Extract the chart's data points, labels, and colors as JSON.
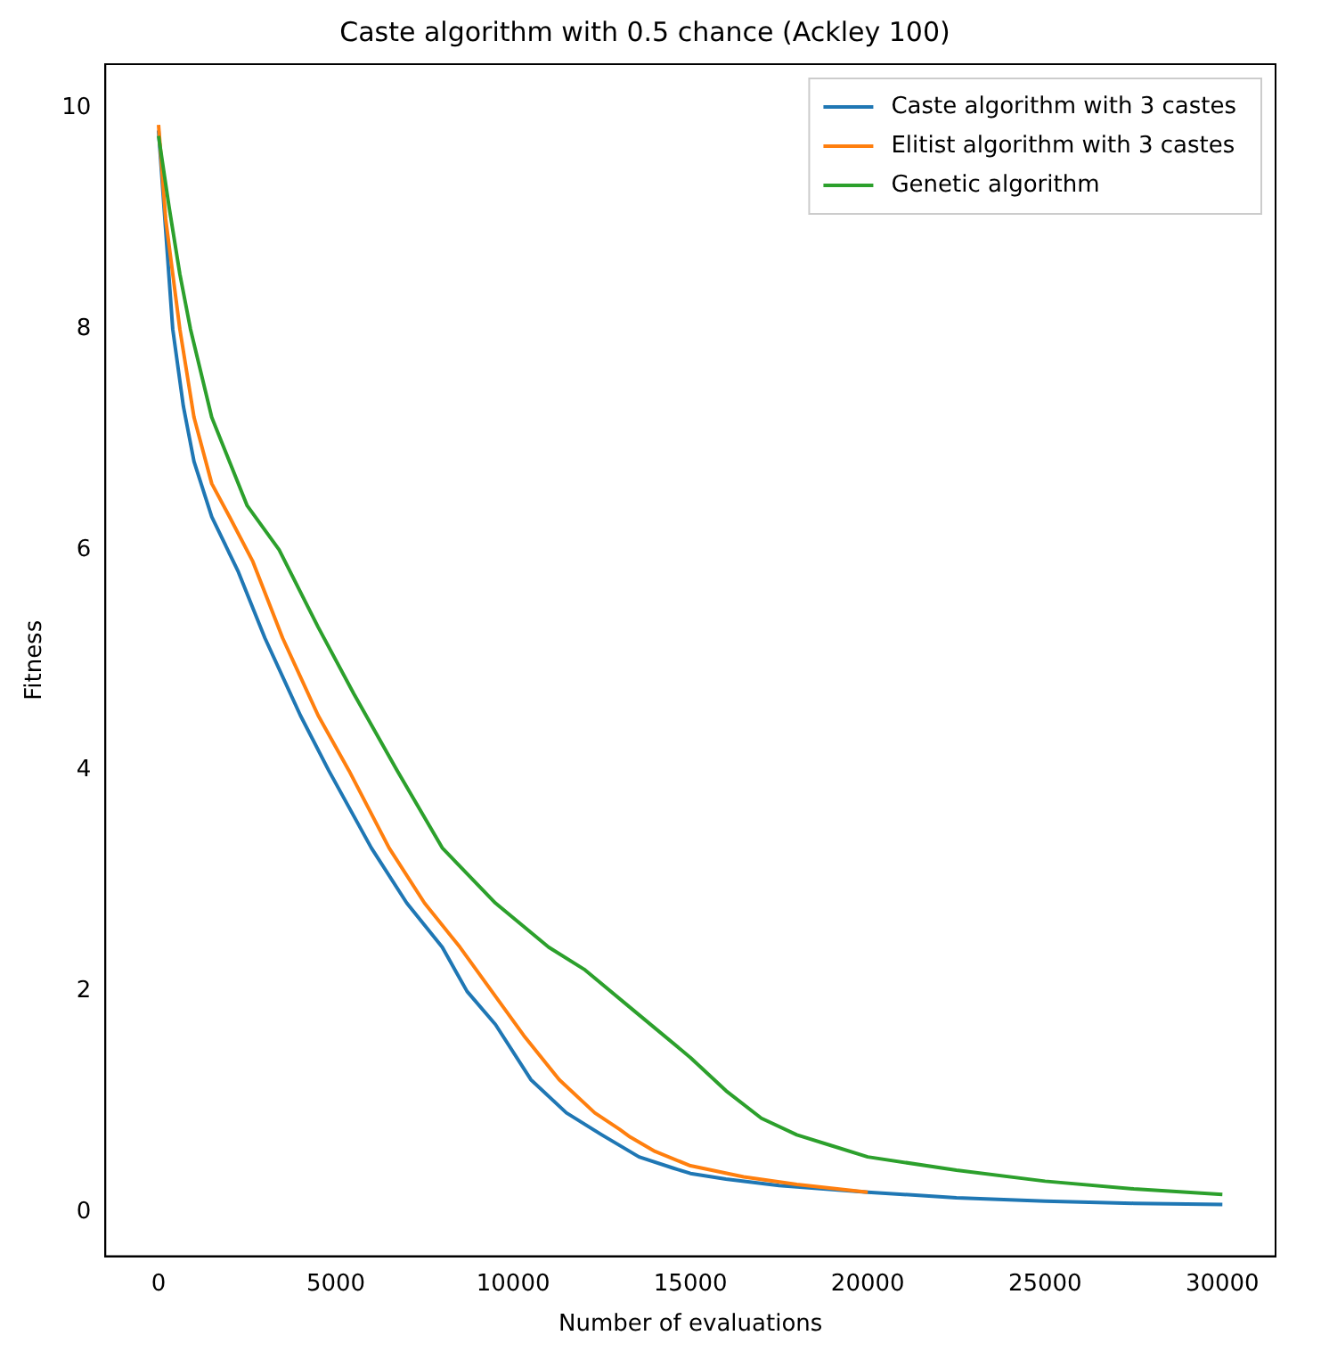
{
  "chart_data": {
    "type": "line",
    "title": "Caste algorithm with 0.5 chance (Ackley 100)",
    "xlabel": "Number of evaluations",
    "ylabel": "Fitness",
    "xlim": [
      -1500,
      31500
    ],
    "xticks": [
      0,
      5000,
      10000,
      15000,
      20000,
      25000,
      30000
    ],
    "ylim": [
      -0.4,
      10.4
    ],
    "yticks": [
      0,
      2,
      4,
      6,
      8,
      10
    ],
    "grid": false,
    "legend": "top right",
    "marker": "none",
    "line_style": "solid",
    "series": [
      {
        "name": "Caste algorithm with 3 castes",
        "color": "#1f77b4",
        "x": [
          0,
          200,
          400,
          700,
          1000,
          1500,
          2250,
          3000,
          4000,
          4800,
          6000,
          7000,
          8000,
          8700,
          9500,
          10500,
          11500,
          12500,
          13550,
          14500,
          15000,
          16000,
          17500,
          20000,
          22500,
          25000,
          27500,
          30000
        ],
        "values": [
          9.8,
          8.9,
          8.0,
          7.3,
          6.8,
          6.3,
          5.8,
          5.2,
          4.5,
          4.0,
          3.3,
          2.8,
          2.4,
          2.0,
          1.7,
          1.2,
          0.9,
          0.7,
          0.5,
          0.4,
          0.35,
          0.3,
          0.24,
          0.18,
          0.13,
          0.1,
          0.08,
          0.07
        ]
      },
      {
        "name": "Elitist algorithm with 3 castes",
        "color": "#ff7f0e",
        "x": [
          0,
          200,
          400,
          600,
          1000,
          1500,
          2000,
          2650,
          3500,
          4500,
          5370,
          6500,
          7500,
          8500,
          9400,
          10300,
          11300,
          12300,
          13000,
          13300,
          14000,
          15000,
          16500,
          18000,
          20000
        ],
        "values": [
          9.85,
          9.0,
          8.5,
          8.0,
          7.2,
          6.6,
          6.3,
          5.9,
          5.2,
          4.5,
          4.0,
          3.3,
          2.8,
          2.4,
          2.0,
          1.6,
          1.2,
          0.9,
          0.75,
          0.68,
          0.55,
          0.42,
          0.32,
          0.25,
          0.18
        ]
      },
      {
        "name": "Genetic algorithm",
        "color": "#2ca02c",
        "x": [
          0,
          300,
          600,
          900,
          1500,
          2500,
          3400,
          4500,
          5500,
          6730,
          8000,
          9500,
          11000,
          12000,
          13500,
          15000,
          16000,
          17000,
          18000,
          19000,
          20000,
          22500,
          25000,
          27500,
          30000
        ],
        "values": [
          9.75,
          9.1,
          8.5,
          8.0,
          7.2,
          6.4,
          6.0,
          5.3,
          4.7,
          4.0,
          3.3,
          2.8,
          2.4,
          2.2,
          1.8,
          1.4,
          1.1,
          0.85,
          0.7,
          0.6,
          0.5,
          0.38,
          0.28,
          0.21,
          0.16
        ]
      }
    ]
  }
}
